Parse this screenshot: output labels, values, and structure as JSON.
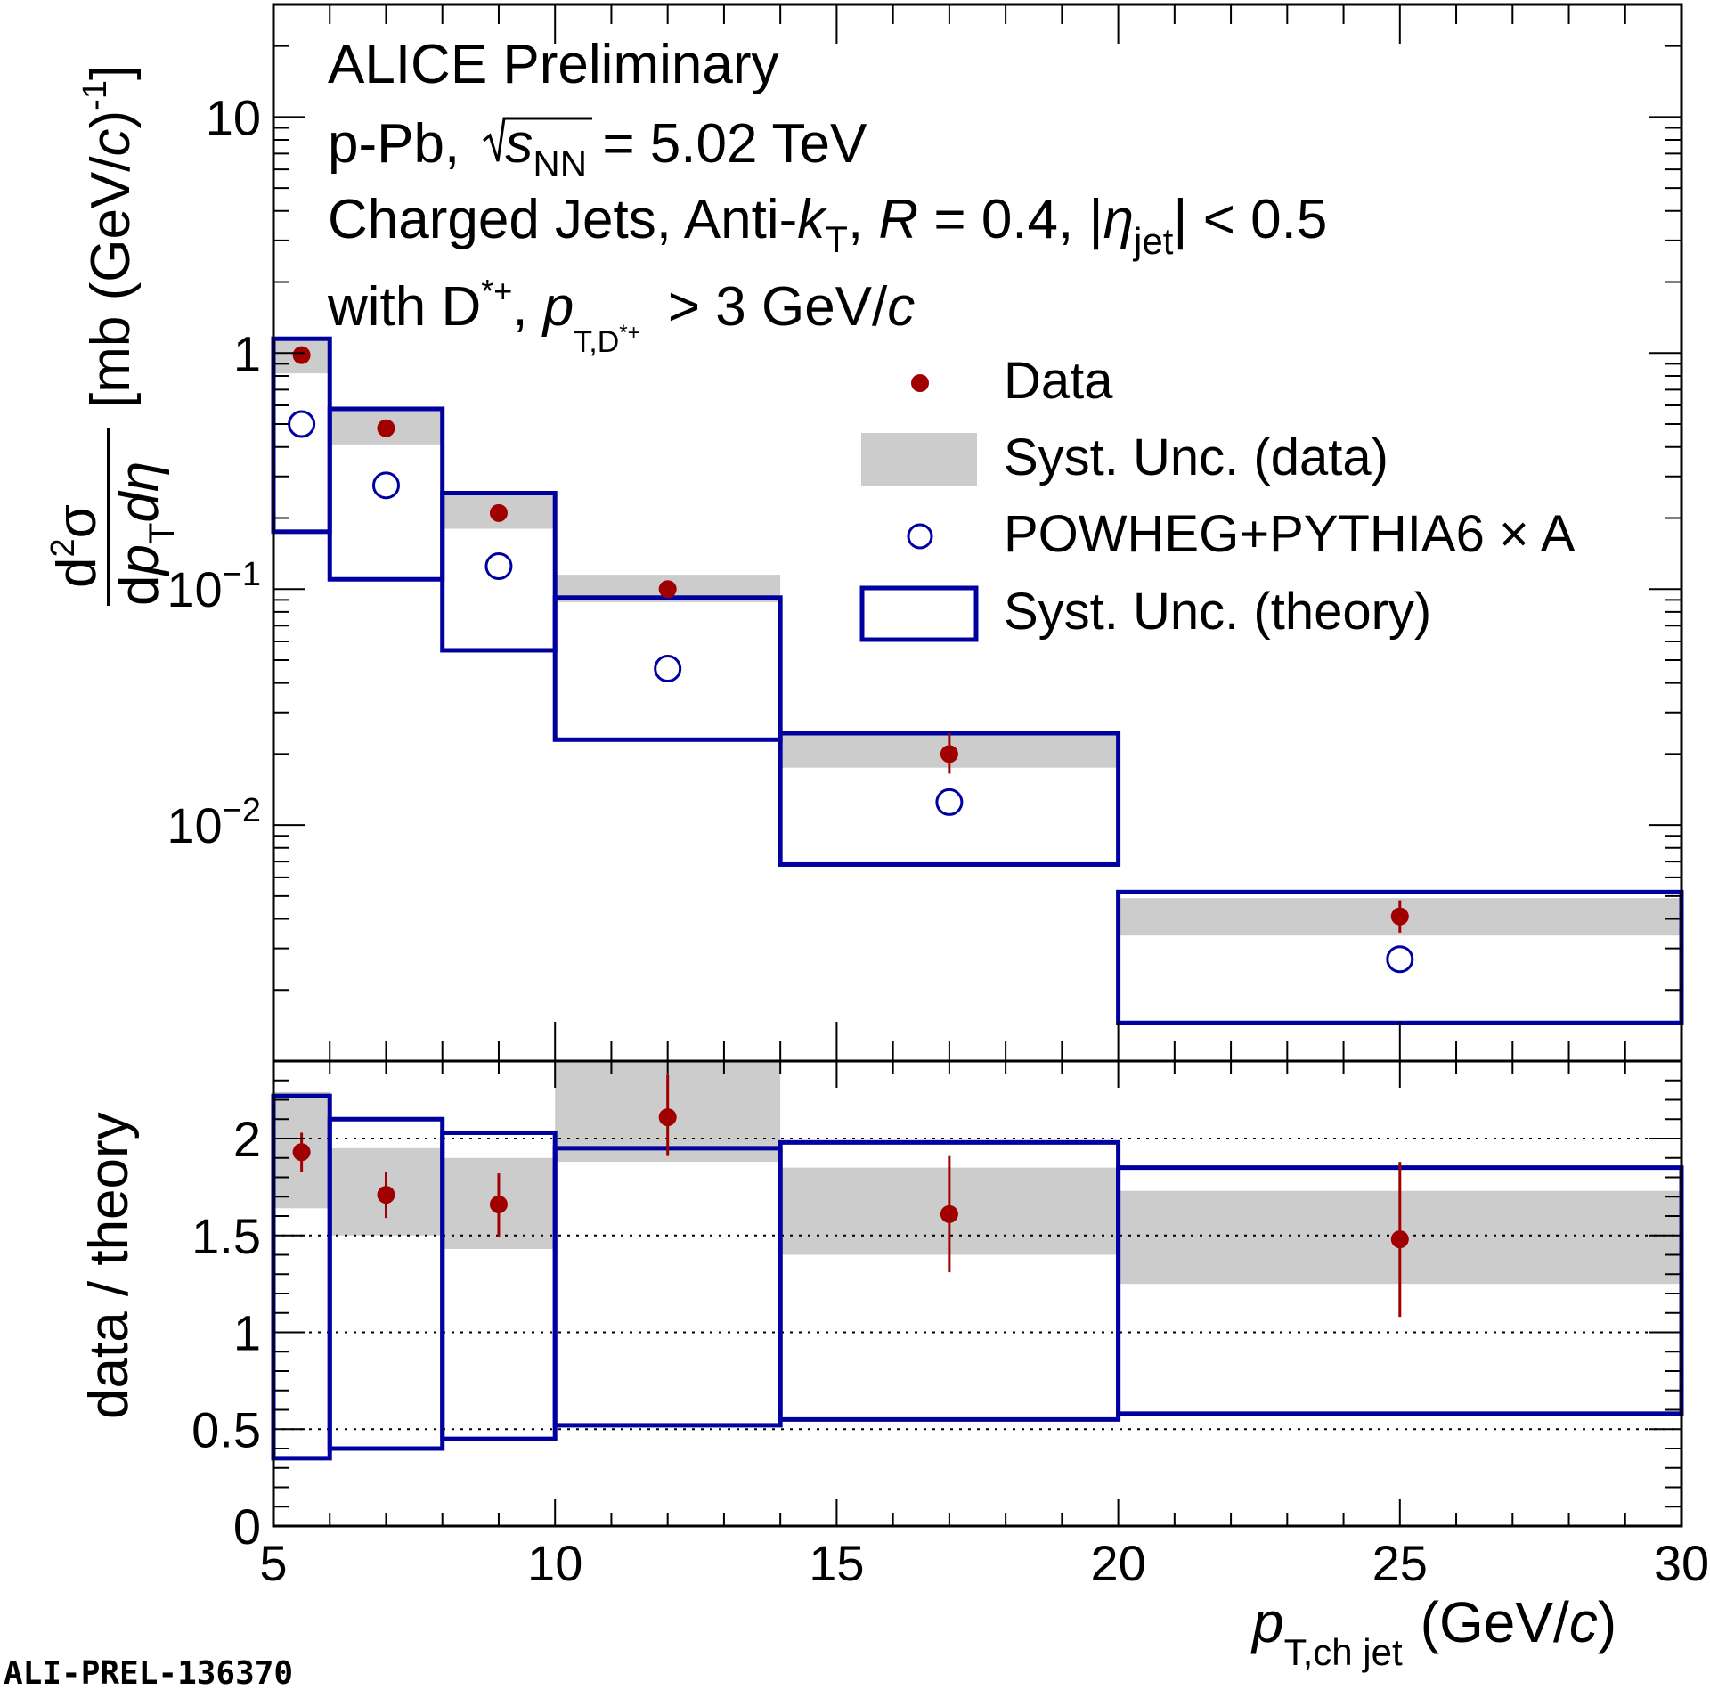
{
  "chart_data": {
    "type": "bar",
    "bins": [
      {
        "low": 5,
        "high": 6
      },
      {
        "low": 6,
        "high": 8
      },
      {
        "low": 8,
        "high": 10
      },
      {
        "low": 10,
        "high": 14
      },
      {
        "low": 14,
        "high": 20
      },
      {
        "low": 20,
        "high": 30
      }
    ],
    "x_centers": [
      5.5,
      7,
      9,
      12,
      17,
      25
    ],
    "top_panel": {
      "ylabel_parts": {
        "num": "d",
        "num_sup": "2",
        "num_sym": "σ",
        "den_d1": "d",
        "den_p": "p",
        "den_sub": "T",
        "den_d2": "dη",
        "unit_pre": "[mb (GeV/",
        "unit_c": "c",
        "unit_post": ")",
        "unit_sup": "-1",
        "unit_close": "]"
      },
      "yscale": "log",
      "ylim": [
        0.001,
        30
      ],
      "tick_labels": [
        {
          "value": 10,
          "label": "10"
        },
        {
          "value": 1,
          "label": "1"
        },
        {
          "value": 0.1,
          "base": "10",
          "exp": "−1"
        },
        {
          "value": 0.01,
          "base": "10",
          "exp": "−2"
        }
      ],
      "data": {
        "values": [
          0.98,
          0.48,
          0.21,
          0.1,
          0.02,
          0.0041
        ],
        "stat_err_low": [
          0.05,
          0.03,
          0.015,
          0.007,
          0.0035,
          0.0006
        ],
        "stat_err_high": [
          0.05,
          0.03,
          0.015,
          0.007,
          0.0045,
          0.0007
        ],
        "syst_low": [
          0.82,
          0.41,
          0.18,
          0.088,
          0.0175,
          0.0034
        ],
        "syst_high": [
          1.15,
          0.58,
          0.25,
          0.115,
          0.024,
          0.0049
        ]
      },
      "theory": {
        "values": [
          0.5,
          0.275,
          0.125,
          0.046,
          0.0125,
          0.0027
        ],
        "syst_low": [
          0.175,
          0.11,
          0.055,
          0.023,
          0.0068,
          0.00145
        ],
        "syst_high": [
          1.15,
          0.58,
          0.255,
          0.092,
          0.0245,
          0.0052
        ]
      }
    },
    "ratio_panel": {
      "ylabel": "data / theory",
      "ylim": [
        0,
        2.4
      ],
      "tick_labels": [
        "0",
        "0.5",
        "1",
        "1.5",
        "2"
      ],
      "tick_values": [
        0,
        0.5,
        1,
        1.5,
        2
      ],
      "dotted_lines": [
        0.5,
        1,
        1.5,
        2
      ],
      "values": [
        1.93,
        1.71,
        1.66,
        2.11,
        1.61,
        1.48
      ],
      "stat_err_low": [
        0.1,
        0.12,
        0.17,
        0.2,
        0.3,
        0.4
      ],
      "stat_err_high": [
        0.1,
        0.12,
        0.16,
        0.22,
        0.3,
        0.4
      ],
      "syst_low": [
        1.64,
        1.5,
        1.43,
        1.88,
        1.4,
        1.25
      ],
      "syst_high": [
        2.24,
        1.95,
        1.9,
        2.4,
        1.85,
        1.73
      ],
      "theory_low": [
        0.35,
        0.4,
        0.45,
        0.52,
        0.55,
        0.58
      ],
      "theory_high": [
        2.22,
        2.1,
        2.03,
        1.95,
        1.98,
        1.85
      ]
    },
    "xlim": [
      5,
      30
    ],
    "x_tick_labels": [
      "5",
      "10",
      "15",
      "20",
      "25",
      "30"
    ],
    "x_tick_values": [
      5,
      10,
      15,
      20,
      25,
      30
    ],
    "xlabel": {
      "var": "p",
      "sub": "T,ch jet",
      "unit_pre": "(GeV/",
      "unit_c": "c",
      "unit_post": ")"
    },
    "annotations": {
      "line1": "ALICE Preliminary",
      "line2": {
        "pre": "p-Pb, ",
        "s": "s",
        "s_sub": "NN",
        "post": " = 5.02 TeV"
      },
      "line3": {
        "pre": "Charged Jets, Anti-",
        "k": "k",
        "k_sub": "T",
        "mid": ", ",
        "R": "R",
        "mid2": " = 0.4, |",
        "eta": "η",
        "eta_sub": "jet",
        "post": "| < 0.5"
      },
      "line4": {
        "pre": "with D",
        "sup": "*+",
        "mid": ", ",
        "p": "p",
        "p_sub": "T,D",
        "p_subsup": "*+",
        "post": " > 3 GeV/",
        "c": "c"
      }
    },
    "legend": {
      "position": "top-right",
      "entries": [
        "Data",
        "Syst. Unc. (data)",
        "POWHEG+PYTHIA6 × A",
        "Syst. Unc. (theory)"
      ]
    },
    "colors": {
      "data": "#a00000",
      "syst_fill": "#cccccc",
      "theory": "#0000a0",
      "watermark": "#aaaaaa"
    },
    "watermark": "ALI-PREL-136370"
  }
}
